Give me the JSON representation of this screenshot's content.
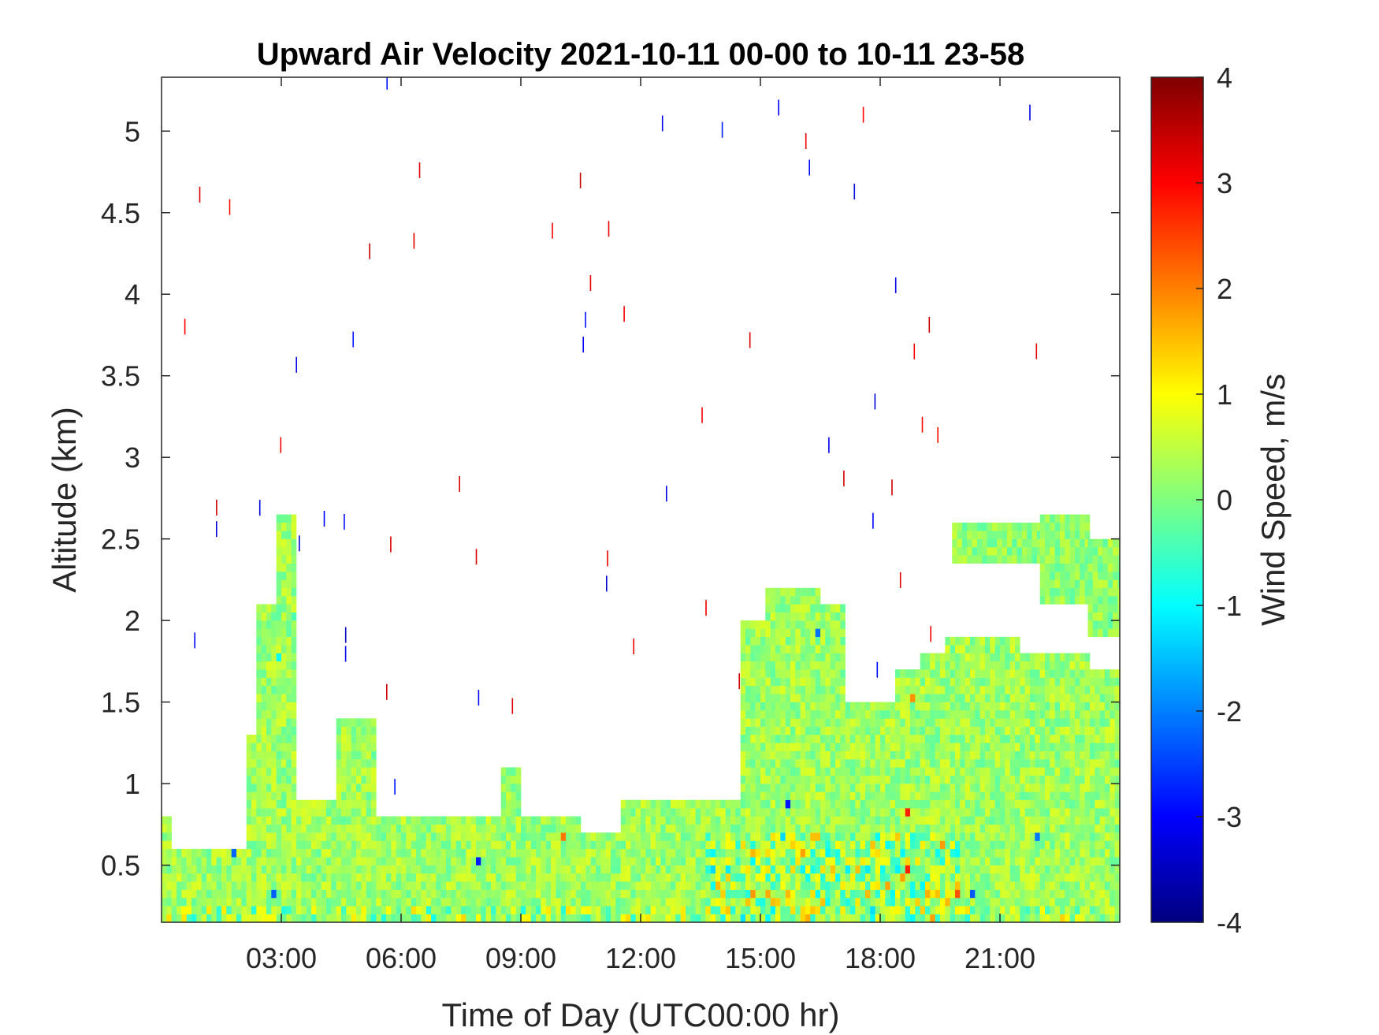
{
  "chart_data": {
    "type": "heatmap",
    "title": "Upward Air Velocity 2021-10-11 00-00 to 10-11 23-58",
    "xlabel": "Time of Day (UTC00:00 hr)",
    "ylabel": "Altitude (km)",
    "x_tick_labels": [
      "03:00",
      "06:00",
      "09:00",
      "12:00",
      "15:00",
      "18:00",
      "21:00"
    ],
    "x_ticks_hours": [
      3,
      6,
      9,
      12,
      15,
      18,
      21
    ],
    "xlim_hours": [
      0,
      24
    ],
    "y_tick_labels": [
      "0.5",
      "1",
      "1.5",
      "2",
      "2.5",
      "3",
      "3.5",
      "4",
      "4.5",
      "5"
    ],
    "y_ticks": [
      0.5,
      1,
      1.5,
      2,
      2.5,
      3,
      3.5,
      4,
      4.5,
      5
    ],
    "ylim": [
      0.15,
      5.33
    ],
    "colorbar": {
      "label": "Wind Speed, m/s",
      "ticks": [
        4,
        3,
        2,
        1,
        0,
        -1,
        -2,
        -3,
        -4
      ],
      "tick_labels": [
        "4",
        "3",
        "2",
        "1",
        "0",
        "-1",
        "-2",
        "-3",
        "-4"
      ],
      "range": [
        -4,
        4
      ],
      "colormap": "jet"
    },
    "grid": false,
    "data_extent_km": [
      {
        "start": 0.0,
        "end": 0.2,
        "top": 0.8
      },
      {
        "start": 0.2,
        "end": 2.1,
        "top": 0.6
      },
      {
        "start": 2.1,
        "end": 2.3,
        "top": 1.3
      },
      {
        "start": 2.3,
        "end": 2.8,
        "top": 2.1
      },
      {
        "start": 2.8,
        "end": 3.3,
        "top": 2.6
      },
      {
        "start": 3.3,
        "end": 4.3,
        "top": 0.9
      },
      {
        "start": 4.3,
        "end": 5.3,
        "top": 1.4
      },
      {
        "start": 5.3,
        "end": 8.5,
        "top": 0.8
      },
      {
        "start": 8.5,
        "end": 9.0,
        "top": 1.1
      },
      {
        "start": 9.0,
        "end": 10.5,
        "top": 0.8
      },
      {
        "start": 10.5,
        "end": 11.5,
        "top": 0.7
      },
      {
        "start": 11.5,
        "end": 12.5,
        "top": 0.9
      },
      {
        "start": 12.5,
        "end": 14.5,
        "top": 0.9
      },
      {
        "start": 14.5,
        "end": 15.1,
        "top": 2.0
      },
      {
        "start": 15.1,
        "end": 16.4,
        "top": 2.2
      },
      {
        "start": 16.4,
        "end": 17.1,
        "top": 2.1
      },
      {
        "start": 17.1,
        "end": 18.3,
        "top": 1.5
      },
      {
        "start": 18.3,
        "end": 19.0,
        "top": 1.7
      },
      {
        "start": 19.0,
        "end": 19.6,
        "top": 1.8
      },
      {
        "start": 19.6,
        "end": 21.5,
        "top": 1.9
      },
      {
        "start": 21.5,
        "end": 23.2,
        "top": 1.8
      },
      {
        "start": 23.2,
        "end": 24.0,
        "top": 1.7
      }
    ],
    "upper_layer_km": [
      {
        "start": 19.8,
        "end": 22.0,
        "bottom": 2.35,
        "top": 2.55
      },
      {
        "start": 22.0,
        "end": 23.2,
        "bottom": 2.1,
        "top": 2.6
      },
      {
        "start": 23.2,
        "end": 24.0,
        "bottom": 1.9,
        "top": 2.45
      }
    ]
  }
}
